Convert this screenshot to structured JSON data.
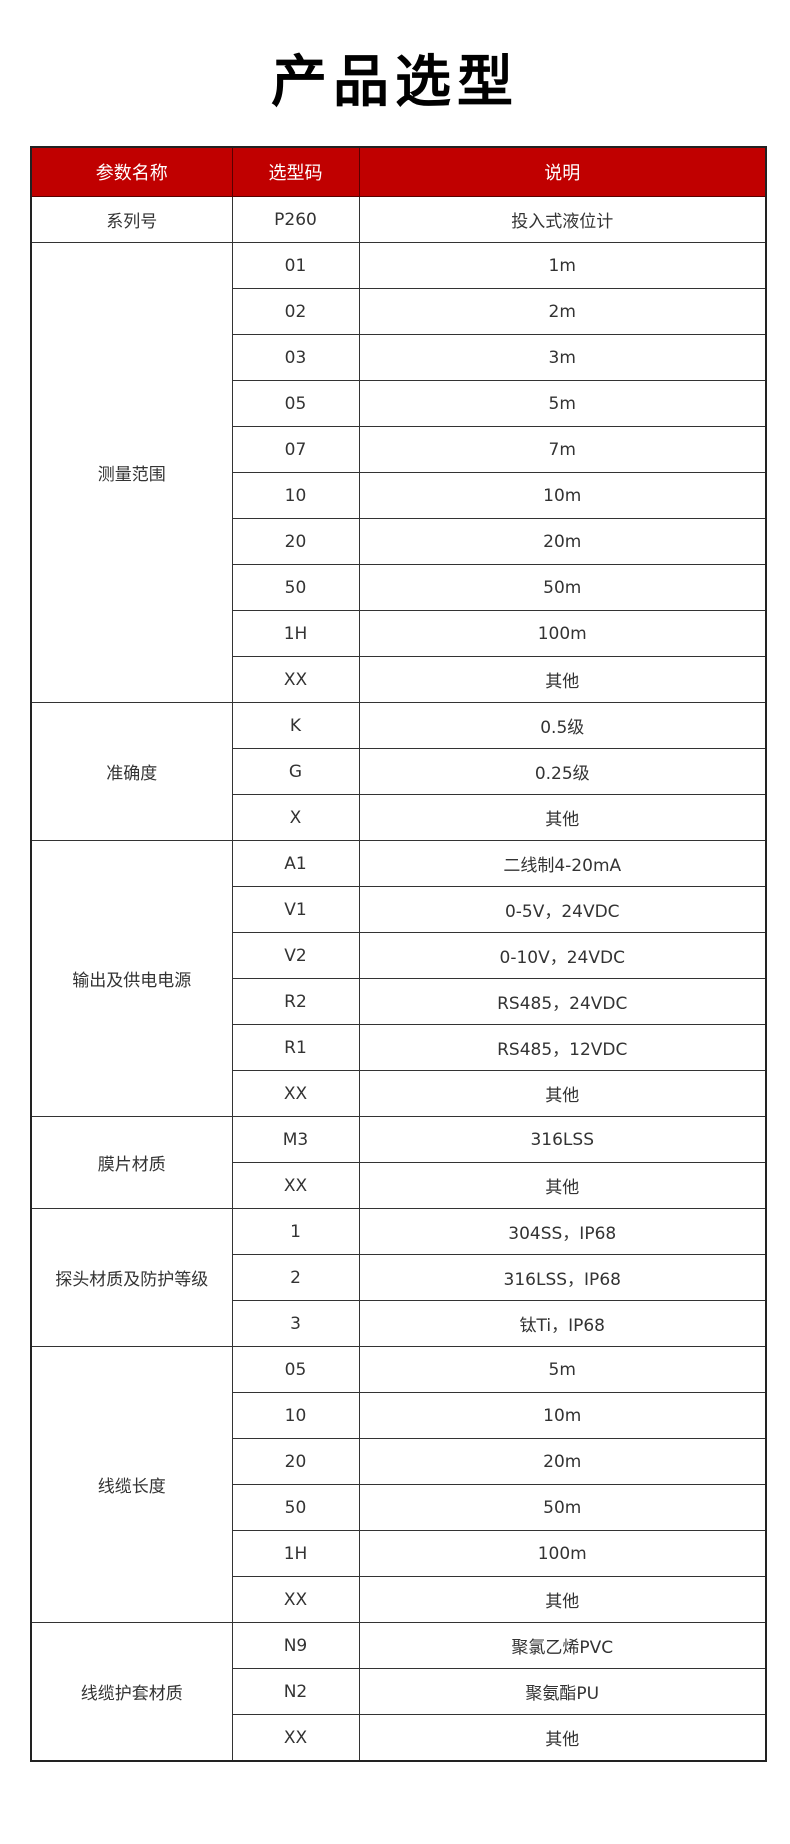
{
  "title": "产品选型",
  "headers": [
    "参数名称",
    "选型码",
    "说明"
  ],
  "groups": [
    {
      "name": "系列号",
      "rows": [
        [
          "P260",
          "投入式液位计"
        ]
      ]
    },
    {
      "name": "测量范围",
      "rows": [
        [
          "01",
          "1m"
        ],
        [
          "02",
          "2m"
        ],
        [
          "03",
          "3m"
        ],
        [
          "05",
          "5m"
        ],
        [
          "07",
          "7m"
        ],
        [
          "10",
          "10m"
        ],
        [
          "20",
          "20m"
        ],
        [
          "50",
          "50m"
        ],
        [
          "1H",
          "100m"
        ],
        [
          "XX",
          "其他"
        ]
      ]
    },
    {
      "name": "准确度",
      "rows": [
        [
          "K",
          "0.5级"
        ],
        [
          "G",
          "0.25级"
        ],
        [
          "X",
          "其他"
        ]
      ]
    },
    {
      "name": "输出及供电电源",
      "rows": [
        [
          "A1",
          "二线制4-20mA"
        ],
        [
          "V1",
          "0-5V，24VDC"
        ],
        [
          "V2",
          "0-10V，24VDC"
        ],
        [
          "R2",
          "RS485，24VDC"
        ],
        [
          "R1",
          "RS485，12VDC"
        ],
        [
          "XX",
          "其他"
        ]
      ]
    },
    {
      "name": "膜片材质",
      "rows": [
        [
          "M3",
          "316LSS"
        ],
        [
          "XX",
          "其他"
        ]
      ]
    },
    {
      "name": "探头材质及防护等级",
      "rows": [
        [
          "1",
          "304SS，IP68"
        ],
        [
          "2",
          "316LSS，IP68"
        ],
        [
          "3",
          "钛Ti，IP68"
        ]
      ]
    },
    {
      "name": "线缆长度",
      "rows": [
        [
          "05",
          "5m"
        ],
        [
          "10",
          "10m"
        ],
        [
          "20",
          "20m"
        ],
        [
          "50",
          "50m"
        ],
        [
          "1H",
          "100m"
        ],
        [
          "XX",
          "其他"
        ]
      ]
    },
    {
      "name": "线缆护套材质",
      "rows": [
        [
          "N9",
          "聚氯乙烯PVC"
        ],
        [
          "N2",
          "聚氨酯PU"
        ],
        [
          "XX",
          "其他"
        ]
      ]
    }
  ],
  "colors": {
    "header_bg": "#c00000",
    "header_text": "#ffffff"
  }
}
